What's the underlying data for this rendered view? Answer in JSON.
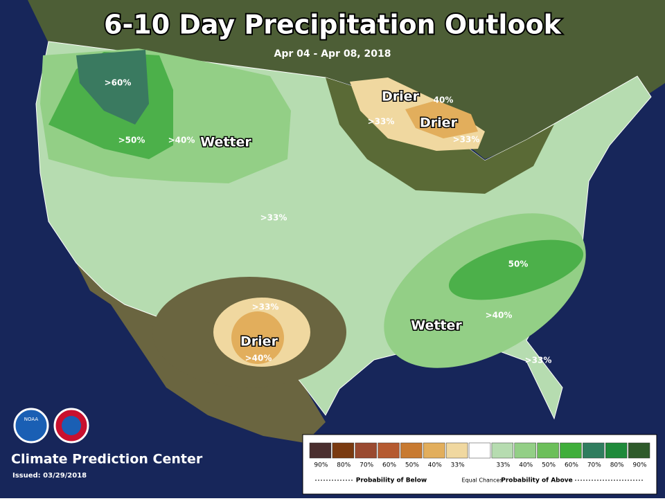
{
  "header": {
    "title": "6-10 Day Precipitation Outlook",
    "subtitle": "Apr 04 - Apr 08, 2018"
  },
  "map_labels": [
    {
      "text": ">60%",
      "kind": "small"
    },
    {
      "text": ">50%",
      "kind": "small"
    },
    {
      "text": ">40%",
      "kind": "small"
    },
    {
      "text": "Wetter",
      "kind": "big"
    },
    {
      "text": "Drier",
      "kind": "big"
    },
    {
      "text": "40%",
      "kind": "small"
    },
    {
      "text": ">33%",
      "kind": "small"
    },
    {
      "text": "Drier",
      "kind": "big"
    },
    {
      "text": ">33%",
      "kind": "small"
    },
    {
      "text": ">33%",
      "kind": "small"
    },
    {
      "text": ">33%",
      "kind": "small"
    },
    {
      "text": "Drier",
      "kind": "big"
    },
    {
      "text": ">40%",
      "kind": "small"
    },
    {
      "text": "Wetter",
      "kind": "big"
    },
    {
      "text": "50%",
      "kind": "small"
    },
    {
      "text": ">40%",
      "kind": "small"
    },
    {
      "text": ">33%",
      "kind": "small"
    }
  ],
  "footer": {
    "agency": "Climate Prediction Center",
    "issued": "Issued: 03/29/2018",
    "logo": "NOAA"
  },
  "legend": {
    "swatches": [
      {
        "color": "#4a2e2e",
        "label": "90%"
      },
      {
        "color": "#7a3a10",
        "label": "80%"
      },
      {
        "color": "#9a4a30",
        "label": "70%"
      },
      {
        "color": "#b55a30",
        "label": "60%"
      },
      {
        "color": "#c87a30",
        "label": "50%"
      },
      {
        "color": "#e2ae5c",
        "label": "40%"
      },
      {
        "color": "#f0d8a0",
        "label": "33%"
      },
      {
        "color": "#ffffff",
        "label": null
      },
      {
        "color": "#b6dcb0",
        "label": "33%"
      },
      {
        "color": "#93cf86",
        "label": "40%"
      },
      {
        "color": "#6cbf5a",
        "label": "50%"
      },
      {
        "color": "#3fae3a",
        "label": "60%"
      },
      {
        "color": "#2f7d5e",
        "label": "70%"
      },
      {
        "color": "#1e8a3a",
        "label": "80%"
      },
      {
        "color": "#2e5a2a",
        "label": "90%"
      }
    ],
    "below": "Probability of Below",
    "equal": "Equal Chances",
    "above": "Probability of Above"
  }
}
